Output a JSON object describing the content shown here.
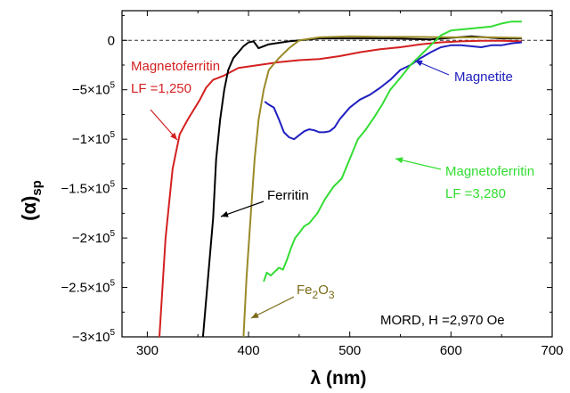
{
  "chart_data": {
    "type": "line",
    "xlabel": "λ (nm)",
    "ylabel_main": "(α)",
    "ylabel_sub": "sp",
    "xlim": [
      275,
      700
    ],
    "ylim": [
      -300000,
      30000
    ],
    "grid": false,
    "x_ticks": [
      300,
      400,
      500,
      600,
      700
    ],
    "y_ticks": [
      {
        "value": 0,
        "label": "0",
        "exp": ""
      },
      {
        "value": -50000,
        "label": "−5×10",
        "exp": "5"
      },
      {
        "value": -100000,
        "label": "−1×10",
        "exp": "5"
      },
      {
        "value": -150000,
        "label": "−1.5×10",
        "exp": "5"
      },
      {
        "value": -200000,
        "label": "−2×10",
        "exp": "5"
      },
      {
        "value": -250000,
        "label": "−2.5×10",
        "exp": "5"
      },
      {
        "value": -300000,
        "label": "−3×10",
        "exp": "5"
      }
    ],
    "zero_line": true,
    "series": [
      {
        "color": "#d42020",
        "x": [
          312,
          318,
          325,
          332,
          340,
          346,
          352,
          358,
          365,
          375,
          390,
          410,
          430,
          450,
          470,
          490,
          510,
          530,
          550,
          570,
          590,
          610,
          630,
          650,
          670
        ],
        "y": [
          -300000,
          -200000,
          -130000,
          -95000,
          -80000,
          -70000,
          -60000,
          -48000,
          -40000,
          -36000,
          -28000,
          -25000,
          -22000,
          -20000,
          -19000,
          -16000,
          -12000,
          -9000,
          -7000,
          -4000,
          -2000,
          -1000,
          -500,
          -500,
          -1000
        ]
      },
      {
        "color": "#000000",
        "x": [
          355,
          360,
          365,
          368,
          372,
          376,
          380,
          385,
          390,
          395,
          400,
          405,
          410,
          420,
          440,
          470,
          500,
          540,
          580,
          620,
          650,
          670
        ],
        "y": [
          -300000,
          -240000,
          -180000,
          -120000,
          -80000,
          -50000,
          -30000,
          -18000,
          -12000,
          -6000,
          -2000,
          -1000,
          -8000,
          -4000,
          -1000,
          2000,
          2000,
          2000,
          1000,
          4000,
          2000,
          2000
        ]
      },
      {
        "color": "#9a8a28",
        "x": [
          395,
          398,
          402,
          406,
          410,
          415,
          420,
          430,
          440,
          450,
          470,
          500,
          530,
          560,
          600,
          640,
          670
        ],
        "y": [
          -300000,
          -240000,
          -180000,
          -120000,
          -80000,
          -50000,
          -30000,
          -18000,
          -8000,
          0,
          3000,
          4000,
          3500,
          3500,
          3000,
          3000,
          2500
        ]
      },
      {
        "color": "#2020c0",
        "x": [
          416,
          420,
          425,
          430,
          435,
          440,
          445,
          450,
          455,
          460,
          465,
          470,
          475,
          480,
          485,
          490,
          495,
          500,
          510,
          520,
          530,
          540,
          550,
          560,
          570,
          580,
          590,
          600,
          610,
          620,
          630,
          640,
          650,
          660,
          670
        ],
        "y": [
          -62000,
          -65000,
          -68000,
          -80000,
          -93000,
          -98000,
          -100000,
          -96000,
          -92000,
          -90000,
          -91000,
          -93000,
          -93000,
          -92000,
          -88000,
          -80000,
          -74000,
          -68000,
          -60000,
          -55000,
          -48000,
          -40000,
          -30000,
          -25000,
          -18000,
          -12000,
          -7000,
          -5000,
          -5000,
          -6000,
          -7000,
          -5000,
          -5000,
          -3000,
          -2000
        ]
      },
      {
        "color": "#33dd33",
        "x": [
          415,
          418,
          422,
          426,
          430,
          434,
          438,
          442,
          446,
          450,
          455,
          460,
          468,
          476,
          484,
          492,
          500,
          508,
          516,
          524,
          532,
          540,
          550,
          560,
          570,
          580,
          590,
          600,
          620,
          640,
          650,
          660,
          670
        ],
        "y": [
          -244000,
          -235000,
          -238000,
          -234000,
          -230000,
          -232000,
          -222000,
          -210000,
          -200000,
          -195000,
          -188000,
          -185000,
          -175000,
          -160000,
          -148000,
          -140000,
          -120000,
          -100000,
          -90000,
          -78000,
          -65000,
          -50000,
          -38000,
          -25000,
          -15000,
          -5000,
          5000,
          10000,
          12000,
          14000,
          17000,
          19000,
          19000
        ]
      }
    ],
    "annotations": [
      {
        "text": "Magnetoferritin",
        "color": "#d42020"
      },
      {
        "text": "LF =1,250",
        "color": "#d42020"
      },
      {
        "text": "Ferritin",
        "color": "#000000"
      },
      {
        "text": "Magnetite",
        "color": "#2020c0"
      },
      {
        "text": "Magnetoferritin",
        "color": "#33dd33"
      },
      {
        "text": "LF =3,280",
        "color": "#33dd33"
      },
      {
        "text": "Fe",
        "color": "#7a6a18",
        "sub1": "2",
        "mid": "O",
        "sub2": "3"
      },
      {
        "text": "MORD, H =2,970 Oe",
        "color": "#000000"
      }
    ]
  }
}
